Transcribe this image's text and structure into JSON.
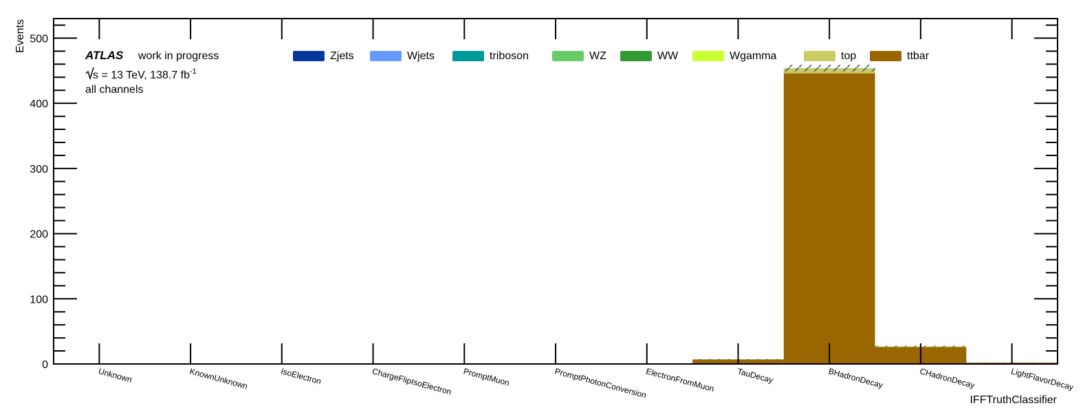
{
  "chart_data": {
    "type": "bar",
    "stacked": true,
    "title": "",
    "xlabel": "IFFTruthClassifier",
    "ylabel": "Events",
    "ylim": [
      0,
      530
    ],
    "yticks": [
      0,
      100,
      200,
      300,
      400,
      500
    ],
    "categories": [
      "Unknown",
      "KnownUnknown",
      "IsoElectron",
      "ChargeFlipIsoElectron",
      "PromptMuon",
      "PromptPhotonConversion",
      "ElectronFromMuon",
      "TauDecay",
      "BHadronDecay",
      "CHadronDecay",
      "LightFlavorDecay"
    ],
    "series": [
      {
        "name": "Zjets",
        "color": "#06379a",
        "values": [
          0,
          0,
          0,
          0,
          0,
          0,
          0,
          0,
          0,
          0,
          0
        ]
      },
      {
        "name": "Wjets",
        "color": "#6699ff",
        "values": [
          0,
          0,
          0,
          0,
          0,
          0,
          0,
          0,
          0,
          0,
          0
        ]
      },
      {
        "name": "triboson",
        "color": "#009999",
        "values": [
          0,
          0,
          0,
          0,
          0,
          0,
          0,
          0,
          0,
          0,
          0
        ]
      },
      {
        "name": "WZ",
        "color": "#66cc66",
        "values": [
          0,
          0,
          0,
          0,
          0,
          0,
          0,
          0,
          0,
          0,
          0
        ]
      },
      {
        "name": "WW",
        "color": "#339933",
        "values": [
          0,
          0,
          0,
          0,
          0,
          0,
          0,
          0,
          0,
          0,
          0
        ]
      },
      {
        "name": "Wgamma",
        "color": "#ccff33",
        "values": [
          0,
          0,
          0,
          0,
          0,
          0,
          0,
          0,
          0,
          0,
          0
        ]
      },
      {
        "name": "top",
        "color": "#cccc66",
        "values": [
          0,
          0,
          0,
          0,
          0,
          0,
          0,
          0,
          8,
          1,
          0
        ]
      },
      {
        "name": "ttbar",
        "color": "#996600",
        "values": [
          0,
          0,
          0,
          0,
          0,
          0,
          0,
          7,
          446,
          26,
          2
        ]
      }
    ],
    "uncertainty": [
      0,
      0,
      0,
      0,
      0,
      0,
      0,
      0.5,
      5,
      1,
      0.2
    ],
    "legend_placement": "top"
  },
  "labels": {
    "atlas": "ATLAS",
    "status": "work in progress",
    "energy_prefix": "s",
    "energy_text": " = 13 TeV, 138.7 fb",
    "energy_sup": "-1",
    "channels": "all channels"
  }
}
